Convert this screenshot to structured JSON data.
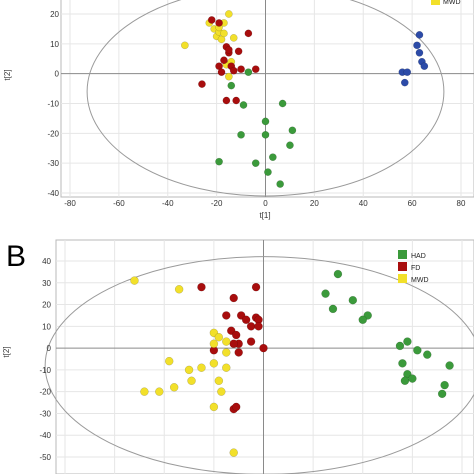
{
  "colors": {
    "HAD": "#3b9a3b",
    "FD": "#a80d0d",
    "MWD": "#f2e02a",
    "TOP_BLUE": "#2c4ba8"
  },
  "chart_data": [
    {
      "type": "scatter",
      "panel": "",
      "xlabel": "t[1]",
      "ylabel": "t[2]",
      "xlim": [
        -80,
        80
      ],
      "ylim": [
        -40,
        25
      ],
      "xticks": [
        "-80",
        "-60",
        "-40",
        "-20",
        "0",
        "20",
        "40",
        "60",
        "80"
      ],
      "yticks": [
        "20",
        "10",
        "0",
        "-10",
        "-20",
        "-30",
        "-40"
      ],
      "grid": true,
      "legend": {
        "entries": [
          "MWD"
        ],
        "position": "top-right"
      },
      "series": [
        {
          "name": "MWD",
          "color_key": "MWD",
          "points": [
            [
              -33,
              9.5
            ],
            [
              -23,
              17
            ],
            [
              -21,
              15
            ],
            [
              -20,
              12.5
            ],
            [
              -19,
              14
            ],
            [
              -18,
              11.5
            ],
            [
              -17,
              13.5
            ],
            [
              -17,
              17
            ],
            [
              -15,
              20
            ],
            [
              -13,
              12
            ],
            [
              -16,
              3
            ],
            [
              -15,
              -1
            ],
            [
              -14,
              4
            ],
            [
              -19,
              15.5
            ]
          ]
        },
        {
          "name": "",
          "color_key": "FD",
          "points": [
            [
              -22,
              18
            ],
            [
              -19,
              17
            ],
            [
              -16,
              9
            ],
            [
              -15,
              7
            ],
            [
              -14,
              2.5
            ],
            [
              -15,
              8
            ],
            [
              -17,
              4.5
            ],
            [
              -19,
              2.5
            ],
            [
              -13,
              1
            ],
            [
              -7,
              13.5
            ],
            [
              -11,
              7.5
            ],
            [
              -10,
              1.5
            ],
            [
              -26,
              -3.5
            ],
            [
              -16,
              -9
            ],
            [
              -12,
              -9
            ],
            [
              -4,
              1.5
            ],
            [
              -18,
              0.5
            ]
          ]
        },
        {
          "name": "",
          "color_key": "HAD",
          "points": [
            [
              -7,
              0.5
            ],
            [
              -9,
              -10.5
            ],
            [
              -14,
              -4
            ],
            [
              -10,
              -20.5
            ],
            [
              -19,
              -29.5
            ],
            [
              -4,
              -30
            ],
            [
              0,
              -20.5
            ],
            [
              0,
              -16
            ],
            [
              7,
              -10
            ],
            [
              11,
              -19
            ],
            [
              10,
              -24
            ],
            [
              3,
              -28
            ],
            [
              1,
              -33
            ],
            [
              6,
              -37
            ]
          ]
        },
        {
          "name": "",
          "color_key": "TOP_BLUE",
          "points": [
            [
              63,
              13
            ],
            [
              62,
              9.5
            ],
            [
              63,
              7
            ],
            [
              64,
              4
            ],
            [
              65,
              2.5
            ],
            [
              56,
              0.5
            ],
            [
              58,
              0.5
            ],
            [
              57,
              -3
            ]
          ]
        }
      ],
      "ellipse": {
        "center": [
          0,
          -6
        ],
        "rx": 73,
        "ry": 35
      }
    },
    {
      "type": "scatter",
      "panel": "B",
      "xlabel": "",
      "ylabel": "t[2]",
      "xlim": [
        -80,
        80
      ],
      "ylim": [
        -55,
        45
      ],
      "xticks": [],
      "yticks": [
        "40",
        "30",
        "20",
        "10",
        "0",
        "-10",
        "-20",
        "-30",
        "-40",
        "-50"
      ],
      "grid": true,
      "legend": {
        "entries": [
          "HAD",
          "FD",
          "MWD"
        ],
        "position": "top-right"
      },
      "series": [
        {
          "name": "HAD",
          "color_key": "HAD",
          "points": [
            [
              30,
              34
            ],
            [
              25,
              25
            ],
            [
              36,
              22
            ],
            [
              28,
              18
            ],
            [
              42,
              15
            ],
            [
              40,
              13
            ],
            [
              58,
              3
            ],
            [
              55,
              1
            ],
            [
              62,
              -1
            ],
            [
              66,
              -3
            ],
            [
              56,
              -7
            ],
            [
              75,
              -8
            ],
            [
              58,
              -12
            ],
            [
              57,
              -15
            ],
            [
              60,
              -14
            ],
            [
              73,
              -17
            ],
            [
              72,
              -21
            ]
          ]
        },
        {
          "name": "FD",
          "color_key": "FD",
          "points": [
            [
              -3,
              28
            ],
            [
              -25,
              28
            ],
            [
              -12,
              23
            ],
            [
              -9,
              15
            ],
            [
              -15,
              15
            ],
            [
              -3,
              14
            ],
            [
              -2,
              13
            ],
            [
              -7,
              13
            ],
            [
              -13,
              8
            ],
            [
              -5,
              10
            ],
            [
              -2,
              10
            ],
            [
              -11,
              6
            ],
            [
              -5,
              3
            ],
            [
              -10,
              2
            ],
            [
              -12,
              2
            ],
            [
              0,
              0
            ],
            [
              -10,
              -2
            ],
            [
              -20,
              -1
            ],
            [
              -12,
              -28
            ],
            [
              -11,
              -27
            ]
          ]
        },
        {
          "name": "MWD",
          "color_key": "MWD",
          "points": [
            [
              -52,
              31
            ],
            [
              -34,
              27
            ],
            [
              -20,
              7
            ],
            [
              -18,
              5
            ],
            [
              -15,
              3
            ],
            [
              -20,
              2
            ],
            [
              -15,
              -2
            ],
            [
              -38,
              -6
            ],
            [
              -20,
              -7
            ],
            [
              -25,
              -9
            ],
            [
              -30,
              -10
            ],
            [
              -15,
              -9
            ],
            [
              -18,
              -15
            ],
            [
              -29,
              -15
            ],
            [
              -36,
              -18
            ],
            [
              -42,
              -20
            ],
            [
              -48,
              -20
            ],
            [
              -17,
              -20
            ],
            [
              -20,
              -27
            ],
            [
              -12,
              -48
            ]
          ]
        }
      ],
      "ellipse": {
        "center": [
          0,
          -8
        ],
        "rx": 88,
        "ry": 50
      }
    }
  ]
}
